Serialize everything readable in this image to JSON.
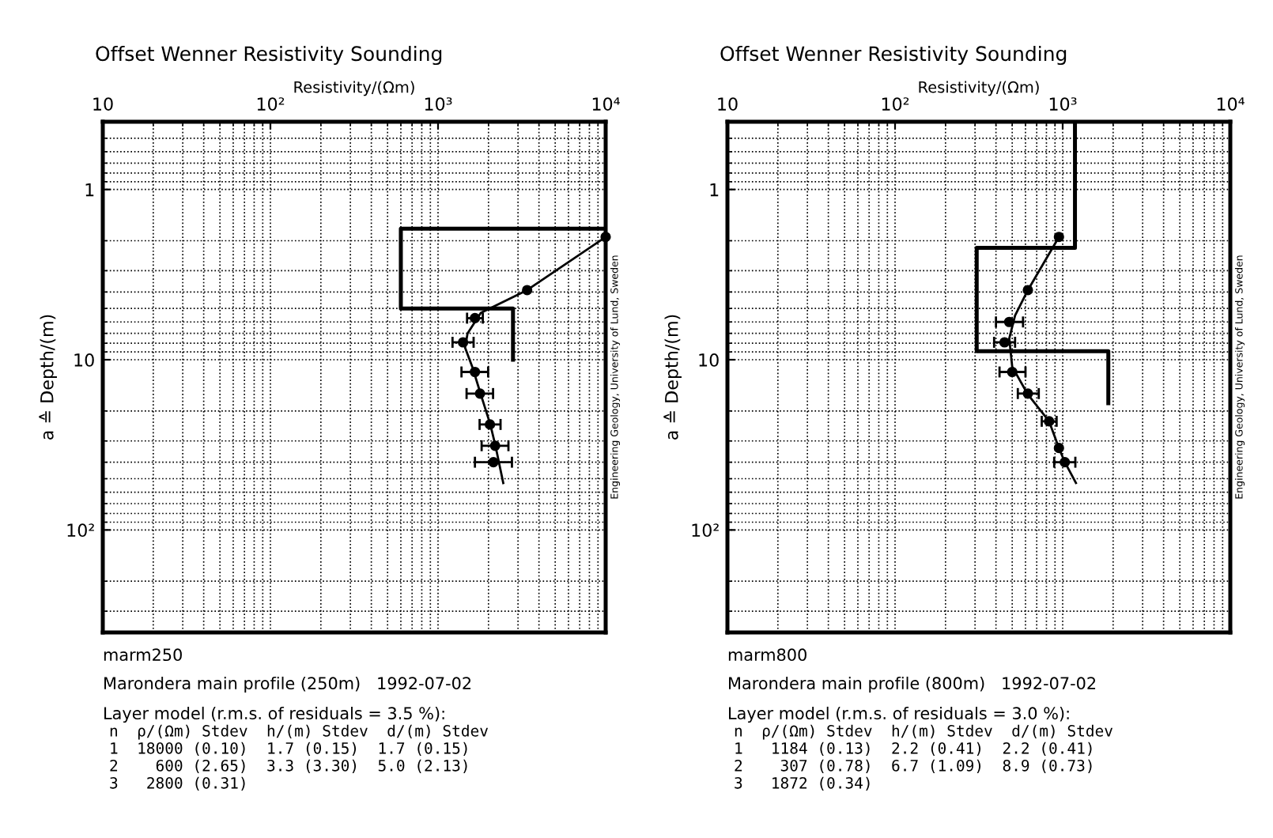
{
  "chart_data": [
    {
      "type": "line",
      "title": "Offset Wenner Resistivity Sounding",
      "xlabel": "Resistivity/(Ωm)",
      "ylabel": "a ≙ Depth/(m)",
      "log": "xy",
      "grid": true,
      "xlim": [
        10,
        10000
      ],
      "xticks": [
        10,
        {
          "value": 100,
          "label": "10²"
        },
        {
          "value": 1000,
          "label": "10³"
        },
        {
          "value": 10000,
          "label": "10⁴"
        }
      ],
      "ylim": [
        400,
        0.4
      ],
      "yticks": [
        1,
        10,
        {
          "value": 100,
          "label": "10²"
        }
      ],
      "series": [
        {
          "color": "#000000",
          "line_style": "solid",
          "marker": "none",
          "x": [
            10000,
            600,
            600,
            2800,
            2800
          ],
          "values": [
            1.7,
            1.7,
            5.0,
            5.0,
            10
          ]
        },
        {
          "color": "#000000",
          "line_style": "solid",
          "marker": "none",
          "x": [
            10000,
            3400,
            1800,
            1500,
            1450,
            1600,
            1800,
            2050,
            2200,
            2450
          ],
          "values": [
            1.9,
            3.9,
            5.3,
            7,
            8.5,
            11,
            16,
            24,
            32,
            53
          ]
        },
        {
          "type": "scatter",
          "color": "#000000",
          "marker": "circle",
          "x": [
            10000,
            3400,
            1660,
            1410,
            1660,
            1780,
            2040,
            2190,
            2140
          ],
          "values": [
            1.9,
            3.9,
            5.7,
            7.9,
            11.8,
            15.8,
            24,
            32,
            40
          ],
          "xerrors": [
            null,
            null,
            [
              1490,
              1850
            ],
            [
              1220,
              1630
            ],
            [
              1380,
              1990
            ],
            [
              1480,
              2130
            ],
            [
              1770,
              2360
            ],
            [
              1820,
              2630
            ],
            [
              1660,
              2760
            ]
          ]
        }
      ],
      "annotations": [
        "Engineering Geology, University of Lund, Sweden",
        "marm250",
        "Marondera main profile (250m)   1992-07-02",
        "Layer model (r.m.s. of residuals = 3.5 %):",
        "n  ρ/(Ωm) Stdev  h/(m) Stdev  d/(m) Stdev",
        "1  18000 (0.10)  1.7 (0.15)  1.7 (0.15)",
        "2    600 (2.65)  3.3 (3.30)  5.0 (2.13)",
        "3   2800 (0.31)"
      ]
    },
    {
      "type": "line",
      "title": "Offset Wenner Resistivity Sounding",
      "xlabel": "Resistivity/(Ωm)",
      "ylabel": "a ≙ Depth/(m)",
      "log": "xy",
      "grid": true,
      "xlim": [
        10,
        10000
      ],
      "xticks": [
        10,
        {
          "value": 100,
          "label": "10²"
        },
        {
          "value": 1000,
          "label": "10³"
        },
        {
          "value": 10000,
          "label": "10⁴"
        }
      ],
      "ylim": [
        400,
        0.4
      ],
      "yticks": [
        1,
        10,
        {
          "value": 100,
          "label": "10²"
        }
      ],
      "series": [
        {
          "color": "#000000",
          "line_style": "solid",
          "marker": "none",
          "x": [
            1184,
            1184,
            307,
            307,
            1872,
            1872
          ],
          "values": [
            0.4,
            2.2,
            2.2,
            8.9,
            8.9,
            18
          ]
        },
        {
          "color": "#000000",
          "line_style": "solid",
          "marker": "none",
          "x": [
            950,
            620,
            520,
            480,
            500,
            620,
            830,
            950,
            1030,
            1200
          ],
          "values": [
            1.9,
            3.9,
            5.5,
            7.5,
            11,
            16,
            23,
            33,
            40,
            53
          ]
        },
        {
          "type": "scatter",
          "color": "#000000",
          "marker": "circle",
          "x": [
            950,
            620,
            480,
            450,
            500,
            620,
            830,
            950,
            1030
          ],
          "values": [
            1.9,
            3.9,
            6.0,
            7.9,
            11.8,
            15.8,
            23,
            33,
            40
          ],
          "xerrors": [
            null,
            null,
            [
              400,
              580
            ],
            [
              390,
              520
            ],
            [
              420,
              600
            ],
            [
              540,
              720
            ],
            [
              750,
              920
            ],
            null,
            [
              890,
              1190
            ]
          ]
        }
      ],
      "annotations": [
        "Engineering Geology, University of Lund, Sweden",
        "marm800",
        "Marondera main profile (800m)   1992-07-02",
        "Layer model (r.m.s. of residuals = 3.0 %):",
        "n  ρ/(Ωm) Stdev  h/(m) Stdev  d/(m) Stdev",
        "1   1184 (0.13)  2.2 (0.41)  2.2 (0.41)",
        "2    307 (0.78)  6.7 (1.09)  8.9 (0.73)",
        "3   1872 (0.34)"
      ]
    }
  ]
}
